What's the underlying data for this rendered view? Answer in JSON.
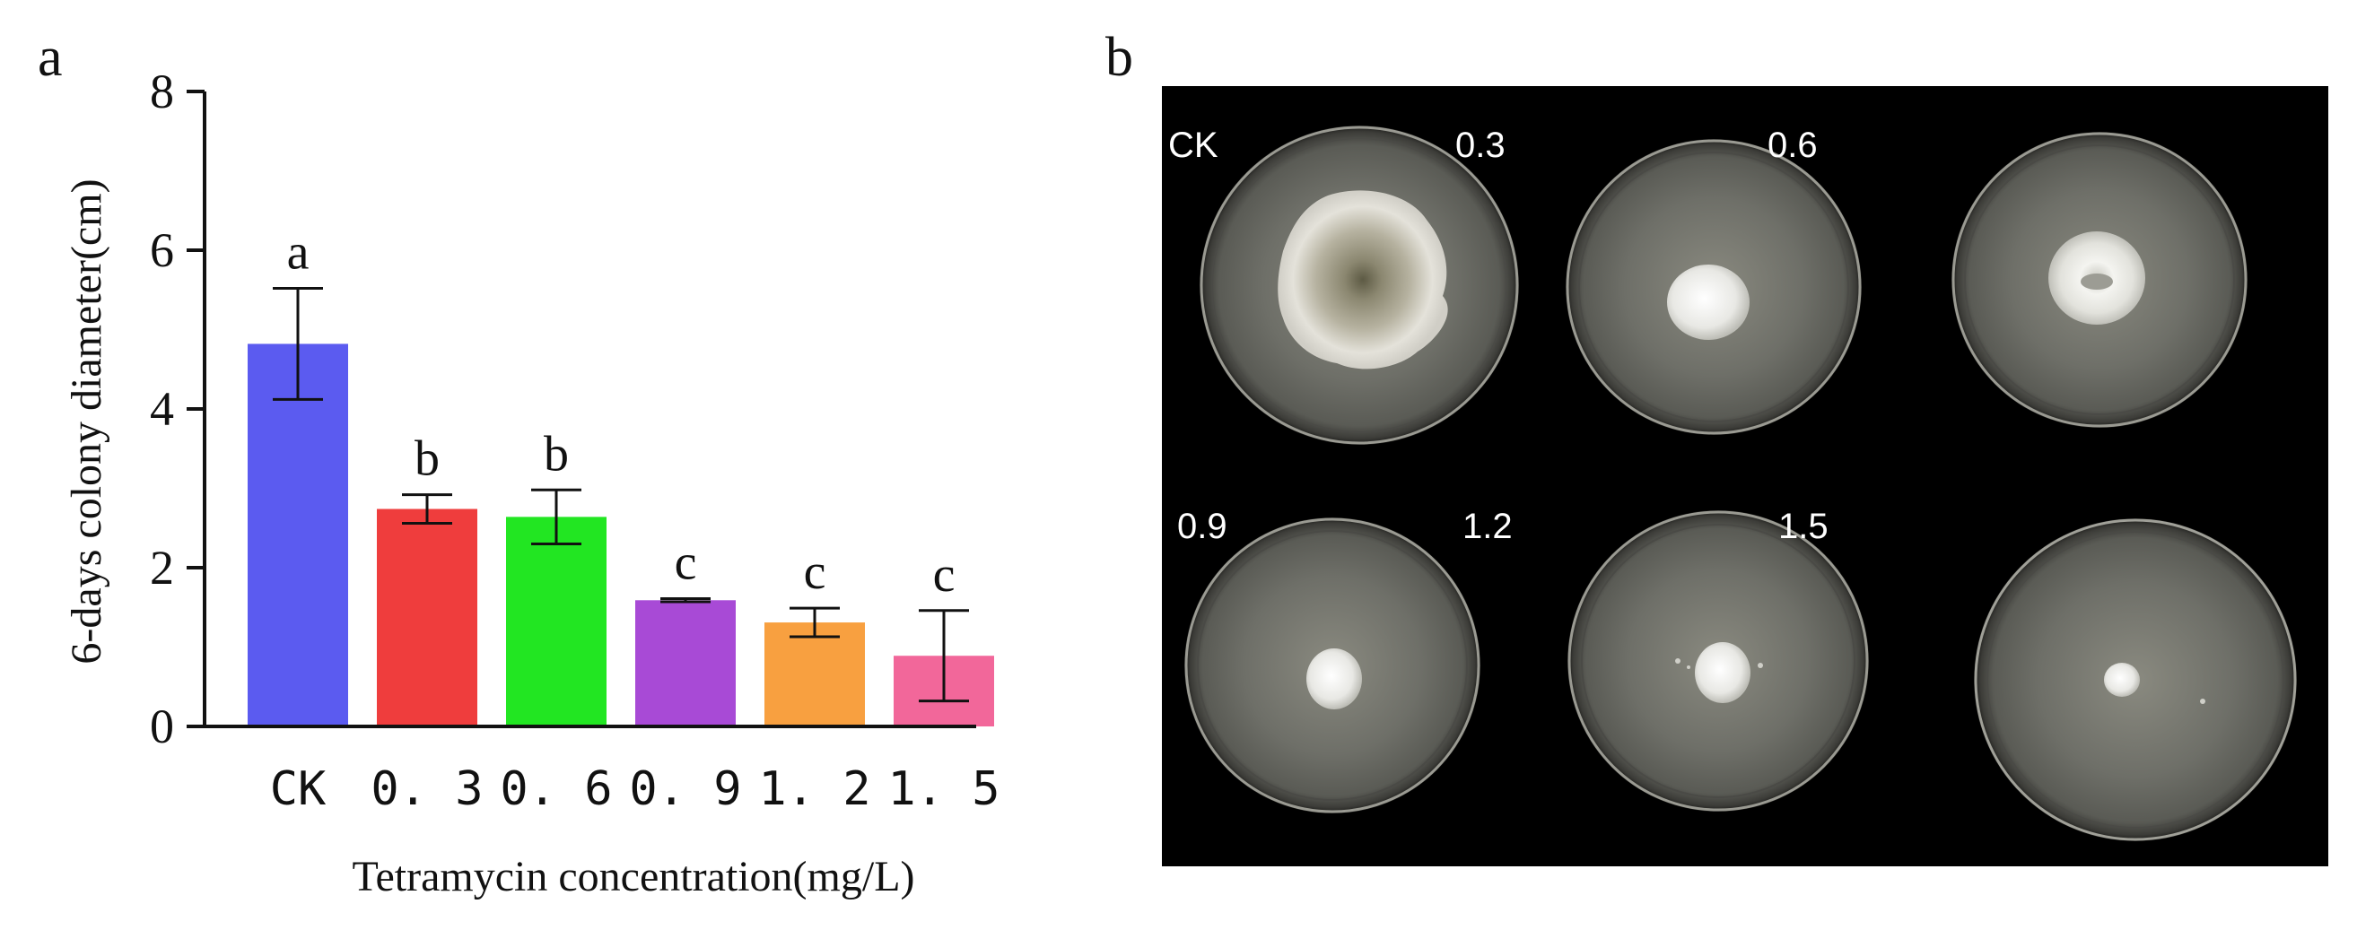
{
  "panels": {
    "a": "a",
    "b": "b"
  },
  "chart_data": {
    "type": "bar",
    "title": "",
    "xlabel": "Tetramycin concentration(mg/L)",
    "ylabel": "6-days colony diameter(cm)",
    "ylim": [
      0,
      8
    ],
    "yticks": [
      "0",
      "2",
      "4",
      "6",
      "8"
    ],
    "grid": false,
    "legend": "none",
    "categories": [
      "CK",
      "0.3",
      "0.6",
      "0.9",
      "1.2",
      "1.5"
    ],
    "tick_labels": [
      "CK",
      "0. 3",
      "0. 6",
      "0. 9",
      "1. 2",
      "1. 5"
    ],
    "values": [
      4.82,
      2.74,
      2.64,
      1.59,
      1.31,
      0.89
    ],
    "errors": [
      0.7,
      0.18,
      0.34,
      0.02,
      0.18,
      0.57
    ],
    "significance": [
      "a",
      "b",
      "b",
      "c",
      "c",
      "c"
    ],
    "colors": [
      "#5b5bf0",
      "#ef3d3d",
      "#22e622",
      "#a84ad6",
      "#f8a040",
      "#f2679a"
    ]
  },
  "photo": {
    "background": "#000000",
    "labels": [
      "CK",
      "0.3",
      "0.6",
      "0.9",
      "1.2",
      "1.5"
    ]
  }
}
